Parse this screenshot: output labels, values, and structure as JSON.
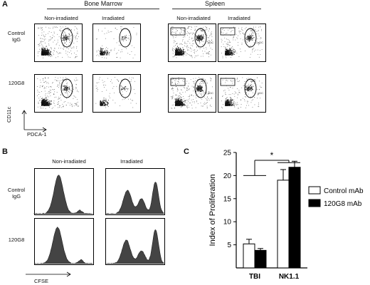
{
  "panel_a": {
    "letter": "A",
    "groups": [
      {
        "label": "Bone Marrow",
        "columns": [
          "Non-irradiated",
          "Irradiated"
        ]
      },
      {
        "label": "Spleen",
        "columns": [
          "Non-irradiated",
          "Irradiated"
        ]
      }
    ],
    "rows": [
      {
        "label_line1": "Control",
        "label_line2": "IgG"
      },
      {
        "label_line1": "120G8",
        "label_line2": ""
      }
    ],
    "axis_y": "CD11c",
    "axis_x": "PDCA-1",
    "gate_labels": {
      "cdc": "cDC",
      "pdc": "pDC"
    }
  },
  "panel_b": {
    "letter": "B",
    "columns": [
      "Non-irradiated",
      "Irradiated"
    ],
    "rows": [
      {
        "label_line1": "Control",
        "label_line2": "IgG"
      },
      {
        "label_line1": "120G8",
        "label_line2": ""
      }
    ],
    "axis_x": "CFSE"
  },
  "panel_c": {
    "letter": "C",
    "significance": "*"
  },
  "chart_data": {
    "type": "bar",
    "categories": [
      "TBI",
      "NK1.1"
    ],
    "series": [
      {
        "name": "Control mAb",
        "values": [
          5.2,
          19.0
        ],
        "errors": [
          1.0,
          2.3
        ],
        "color": "#ffffff"
      },
      {
        "name": "120G8 mAb",
        "values": [
          3.8,
          21.8
        ],
        "errors": [
          0.4,
          1.3
        ],
        "color": "#000000"
      }
    ],
    "ylabel": "Index of Proliferation",
    "ylim": [
      0,
      25
    ],
    "yticks": [
      5,
      10,
      15,
      20,
      25
    ],
    "legend": "right",
    "annotation": "*"
  }
}
